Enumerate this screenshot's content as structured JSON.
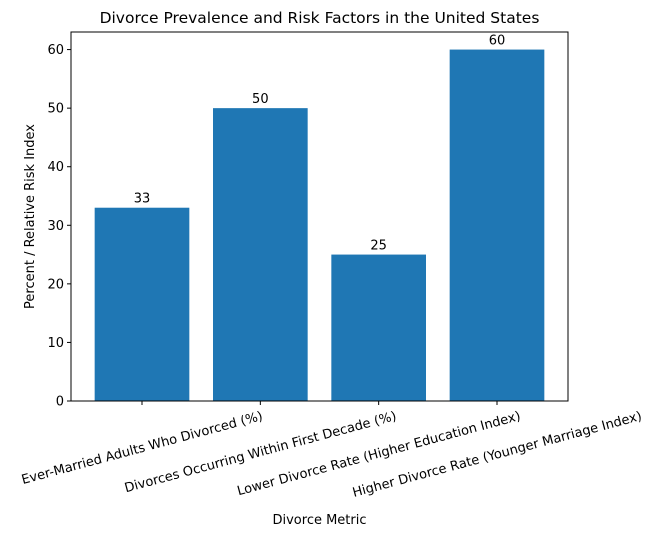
{
  "chart_data": {
    "type": "bar",
    "title": "Divorce Prevalence and Risk Factors in the United States",
    "x_label": "Divorce Metric",
    "y_label": "Percent / Relative Risk Index",
    "categories": [
      "Ever-Married Adults Who Divorced (%)",
      "Divorces Occurring Within First Decade (%)",
      "Lower Divorce Rate (Higher Education Index)",
      "Higher Divorce Rate (Younger Marriage Index)"
    ],
    "values": [
      33,
      50,
      25,
      60
    ],
    "color": "#1f77b4",
    "ylim": [
      0,
      63
    ],
    "yticks": [
      0,
      10,
      20,
      30,
      40,
      50,
      60
    ],
    "grid": false
  }
}
